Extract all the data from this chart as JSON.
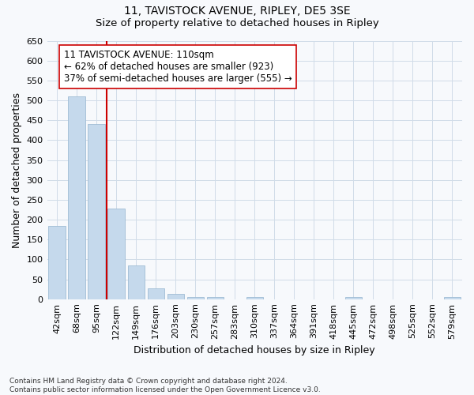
{
  "title1": "11, TAVISTOCK AVENUE, RIPLEY, DE5 3SE",
  "title2": "Size of property relative to detached houses in Ripley",
  "xlabel": "Distribution of detached houses by size in Ripley",
  "ylabel": "Number of detached properties",
  "categories": [
    "42sqm",
    "68sqm",
    "95sqm",
    "122sqm",
    "149sqm",
    "176sqm",
    "203sqm",
    "230sqm",
    "257sqm",
    "283sqm",
    "310sqm",
    "337sqm",
    "364sqm",
    "391sqm",
    "418sqm",
    "445sqm",
    "472sqm",
    "498sqm",
    "525sqm",
    "552sqm",
    "579sqm"
  ],
  "values": [
    185,
    510,
    440,
    227,
    85,
    28,
    14,
    5,
    5,
    0,
    5,
    0,
    0,
    0,
    0,
    5,
    0,
    0,
    0,
    0,
    5
  ],
  "bar_color": "#c5d9ec",
  "bar_edge_color": "#a0bcd4",
  "vline_x_index": 2,
  "vline_color": "#cc0000",
  "annotation_text": "11 TAVISTOCK AVENUE: 110sqm\n← 62% of detached houses are smaller (923)\n37% of semi-detached houses are larger (555) →",
  "annotation_box_facecolor": "#ffffff",
  "annotation_box_edgecolor": "#cc0000",
  "ylim": [
    0,
    650
  ],
  "yticks": [
    0,
    50,
    100,
    150,
    200,
    250,
    300,
    350,
    400,
    450,
    500,
    550,
    600,
    650
  ],
  "footer": "Contains HM Land Registry data © Crown copyright and database right 2024.\nContains public sector information licensed under the Open Government Licence v3.0.",
  "bg_color": "#f7f9fc",
  "grid_color": "#d0dce8",
  "title1_fontsize": 10,
  "title2_fontsize": 9.5,
  "tick_fontsize": 8,
  "label_fontsize": 9,
  "footer_fontsize": 6.5
}
